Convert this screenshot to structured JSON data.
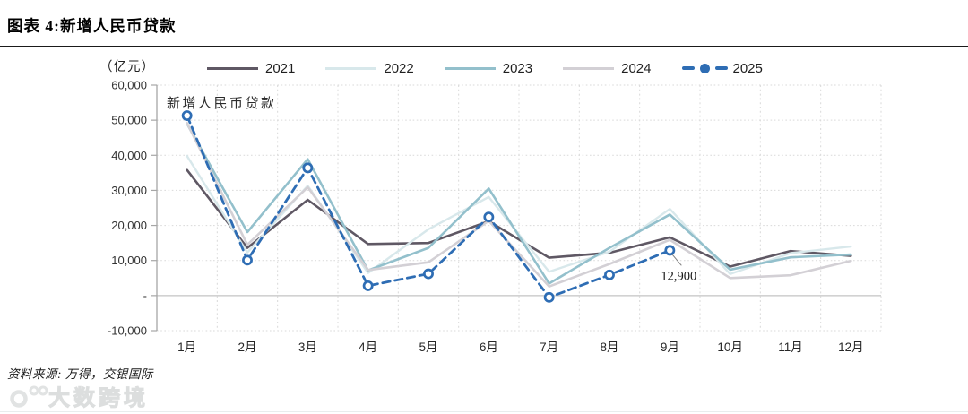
{
  "header": {
    "title": "图表 4:新增人民币贷款"
  },
  "chart_data": {
    "type": "line",
    "title": "图表 4:新增人民币贷款",
    "unit_label": "（亿元）",
    "inplot_label": "新增人民币贷款",
    "categories": [
      "1月",
      "2月",
      "3月",
      "4月",
      "5月",
      "6月",
      "7月",
      "8月",
      "9月",
      "10月",
      "11月",
      "12月"
    ],
    "ylim": [
      -10000,
      60000
    ],
    "grid": "dotted",
    "legend_position": "top",
    "y_ticks": [
      {
        "label": "60,000",
        "value": 60000
      },
      {
        "label": "50,000",
        "value": 50000
      },
      {
        "label": "40,000",
        "value": 40000
      },
      {
        "label": "30,000",
        "value": 30000
      },
      {
        "label": "20,000",
        "value": 20000
      },
      {
        "label": "10,000",
        "value": 10000
      },
      {
        "label": "-",
        "value": 0
      },
      {
        "label": "-10,000",
        "value": -10000
      }
    ],
    "series": [
      {
        "name": "2021",
        "color": "#5f5864",
        "style": "solid",
        "width": 2.6,
        "values": [
          35800,
          13600,
          27300,
          14700,
          15000,
          21200,
          10800,
          12200,
          16600,
          8262,
          12700,
          11318
        ]
      },
      {
        "name": "2022",
        "color": "#d8e8eb",
        "style": "solid",
        "width": 2.4,
        "values": [
          39800,
          12300,
          31300,
          6454,
          18900,
          28100,
          6790,
          12500,
          24700,
          6152,
          12100,
          14000
        ]
      },
      {
        "name": "2023",
        "color": "#93c0cc",
        "style": "solid",
        "width": 2.6,
        "values": [
          49000,
          18100,
          38900,
          7188,
          13600,
          30500,
          3459,
          13600,
          23100,
          7384,
          10900,
          11700
        ]
      },
      {
        "name": "2024",
        "color": "#d3d0d5",
        "style": "solid",
        "width": 2.6,
        "values": [
          49200,
          14500,
          30900,
          7300,
          9500,
          21300,
          2600,
          9000,
          15900,
          5000,
          5800,
          9900
        ]
      },
      {
        "name": "2025",
        "color": "#2e6db4",
        "style": "dashed",
        "width": 2.8,
        "marker": "circle",
        "values": [
          51300,
          10100,
          36400,
          2800,
          6200,
          22400,
          -500,
          5900,
          12900,
          null,
          null,
          null
        ]
      }
    ],
    "annotation": {
      "text": "12,900",
      "series": "2025",
      "category": "9月",
      "month_index": 8
    }
  },
  "footer": {
    "source": "资料来源: 万得，交银国际",
    "watermark": "大数跨境"
  }
}
